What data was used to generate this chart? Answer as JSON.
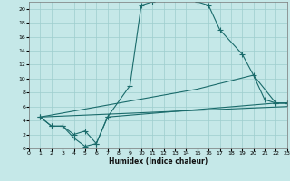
{
  "xlabel": "Humidex (Indice chaleur)",
  "bg_color": "#c5e8e8",
  "grid_color": "#9ecece",
  "line_color": "#1a6b6b",
  "xlim": [
    0,
    23
  ],
  "ylim": [
    0,
    21
  ],
  "curve_main_x": [
    1,
    2,
    3,
    4,
    5,
    6,
    7,
    9,
    10,
    11,
    12,
    13,
    14,
    15,
    16,
    17,
    19,
    20,
    21,
    22,
    23
  ],
  "curve_main_y": [
    4.5,
    3.2,
    3.2,
    1.5,
    0.3,
    0.7,
    4.5,
    9.0,
    20.5,
    21.0,
    21.5,
    21.5,
    21.5,
    21.0,
    20.5,
    17.0,
    13.5,
    10.5,
    7.0,
    6.5,
    6.5
  ],
  "curve_low_x": [
    1,
    2,
    3,
    4,
    5,
    6,
    7,
    22,
    23
  ],
  "curve_low_y": [
    4.5,
    3.2,
    3.2,
    2.0,
    2.5,
    0.7,
    4.5,
    6.5,
    6.5
  ],
  "line1_x": [
    1,
    15,
    20,
    22,
    23
  ],
  "line1_y": [
    4.5,
    8.5,
    10.5,
    6.5,
    6.5
  ],
  "line2_x": [
    1,
    23
  ],
  "line2_y": [
    4.5,
    6.0
  ]
}
